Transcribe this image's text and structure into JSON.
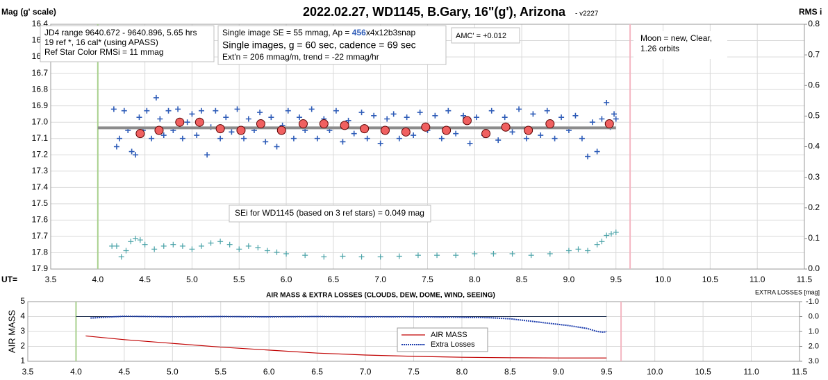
{
  "chart_data": [
    {
      "type": "scatter",
      "title": "2022.02.27, WD1145, B.Gary, 16\"(g'), Arizona",
      "subtitle": "- v2227",
      "y_label": "Mag (g' scale)",
      "y2_label": "RMS i",
      "x_label": "UT=",
      "xlim": [
        3.5,
        11.5
      ],
      "xticks": [
        3.5,
        {
          "value": 4,
          "label": "4.0"
        },
        4.5,
        {
          "value": 5,
          "label": "5.0"
        },
        5.5,
        {
          "value": 6,
          "label": "6.0"
        },
        6.5,
        {
          "value": 7,
          "label": "7.0"
        },
        7.5,
        {
          "value": 8,
          "label": "8.0"
        },
        8.5,
        {
          "value": 9,
          "label": "9.0"
        },
        9.5,
        {
          "value": 10,
          "label": "10.0"
        },
        10.5,
        {
          "value": 11,
          "label": "11.0"
        },
        11.5
      ],
      "ylim": [
        16.4,
        17.9
      ],
      "y_inverted": true,
      "yticks": [
        16.4,
        16.5,
        16.6,
        16.7,
        16.8,
        16.9,
        {
          "value": 17,
          "label": "17.0"
        },
        17.1,
        17.2,
        17.3,
        17.4,
        17.5,
        17.6,
        17.7,
        17.8,
        17.9
      ],
      "y2lim": [
        0,
        0.8
      ],
      "y2ticks": [
        {
          "value": 0,
          "label": "0.0"
        },
        0.1,
        0.2,
        0.3,
        0.4,
        0.5,
        0.6,
        0.7,
        0.8
      ],
      "grid": true,
      "vlines": [
        {
          "x": 4.0,
          "color": "#a9d18e"
        },
        {
          "x": 9.65,
          "color": "#f4b6c2"
        }
      ],
      "series": [
        {
          "color": "#2e5cb8",
          "marker": "plus",
          "x": [
            4.17,
            4.2,
            4.23,
            4.28,
            4.32,
            4.36,
            4.4,
            4.44,
            4.48,
            4.52,
            4.57,
            4.62,
            4.66,
            4.7,
            4.75,
            4.8,
            4.85,
            4.9,
            4.95,
            5.0,
            5.05,
            5.1,
            5.16,
            5.2,
            5.25,
            5.3,
            5.36,
            5.42,
            5.48,
            5.55,
            5.6,
            5.66,
            5.72,
            5.78,
            5.84,
            5.9,
            5.96,
            6.02,
            6.08,
            6.14,
            6.2,
            6.27,
            6.33,
            6.4,
            6.46,
            6.53,
            6.6,
            6.66,
            6.72,
            6.8,
            6.86,
            6.93,
            7.0,
            7.07,
            7.14,
            7.2,
            7.28,
            7.35,
            7.42,
            7.5,
            7.58,
            7.65,
            7.72,
            7.8,
            7.88,
            7.95,
            8.02,
            8.1,
            8.18,
            8.25,
            8.32,
            8.4,
            8.47,
            8.55,
            8.62,
            8.7,
            8.77,
            8.85,
            8.92,
            9.0,
            9.07,
            9.14,
            9.2,
            9.25,
            9.3,
            9.35,
            9.4,
            9.44,
            9.48,
            9.5
          ],
          "values": [
            16.92,
            17.15,
            17.1,
            16.93,
            17.05,
            17.18,
            17.2,
            16.97,
            17.05,
            16.93,
            17.1,
            16.85,
            16.98,
            17.08,
            16.93,
            17.05,
            16.92,
            17.1,
            17.0,
            16.95,
            17.08,
            16.93,
            17.2,
            17.03,
            16.93,
            17.1,
            16.97,
            17.06,
            16.92,
            17.1,
            16.98,
            17.05,
            16.94,
            17.12,
            16.97,
            17.15,
            17.02,
            16.93,
            17.1,
            16.97,
            17.05,
            16.92,
            17.1,
            16.98,
            17.05,
            16.93,
            17.12,
            16.99,
            17.07,
            16.94,
            17.1,
            16.96,
            17.13,
            16.98,
            16.95,
            17.1,
            16.97,
            17.08,
            16.94,
            17.05,
            16.96,
            17.1,
            16.93,
            17.07,
            16.96,
            17.13,
            16.97,
            17.08,
            16.93,
            17.11,
            16.97,
            17.06,
            16.92,
            17.1,
            16.95,
            17.08,
            16.93,
            17.1,
            16.97,
            17.05,
            16.96,
            17.1,
            17.21,
            17.0,
            17.18,
            16.98,
            16.88,
            17.03,
            16.95,
            16.98
          ]
        },
        {
          "color": "#8c8c8c",
          "marker": "line",
          "x": [
            4.0,
            9.5
          ],
          "values": [
            17.035,
            17.035
          ]
        },
        {
          "color": "#f06060",
          "marker": "circle",
          "x": [
            4.45,
            4.65,
            4.87,
            5.08,
            5.3,
            5.52,
            5.73,
            5.95,
            6.18,
            6.4,
            6.62,
            6.83,
            7.05,
            7.27,
            7.48,
            7.7,
            7.92,
            8.12,
            8.33,
            8.57,
            8.8,
            9.43
          ],
          "values": [
            17.07,
            17.05,
            17.0,
            17.0,
            17.04,
            17.05,
            17.01,
            17.05,
            17.01,
            17.01,
            17.02,
            17.04,
            17.05,
            17.06,
            17.03,
            17.05,
            16.99,
            17.07,
            17.03,
            17.05,
            17.01,
            17.01
          ]
        },
        {
          "color": "#4aa3a8",
          "marker": "plus",
          "axis": "y2",
          "x": [
            4.15,
            4.2,
            4.25,
            4.3,
            4.35,
            4.4,
            4.45,
            4.5,
            4.6,
            4.7,
            4.8,
            4.9,
            5.0,
            5.1,
            5.2,
            5.3,
            5.4,
            5.5,
            5.6,
            5.7,
            5.8,
            5.9,
            6.0,
            6.2,
            6.4,
            6.6,
            6.8,
            7.0,
            7.2,
            7.4,
            7.6,
            7.8,
            8.0,
            8.2,
            8.4,
            8.6,
            8.8,
            9.0,
            9.1,
            9.2,
            9.3,
            9.35,
            9.4,
            9.45,
            9.5
          ],
          "values": [
            0.075,
            0.075,
            0.04,
            0.06,
            0.09,
            0.1,
            0.095,
            0.08,
            0.065,
            0.075,
            0.08,
            0.075,
            0.065,
            0.075,
            0.085,
            0.09,
            0.08,
            0.065,
            0.075,
            0.07,
            0.06,
            0.055,
            0.05,
            0.045,
            0.04,
            0.042,
            0.04,
            0.04,
            0.042,
            0.045,
            0.045,
            0.045,
            0.05,
            0.05,
            0.05,
            0.045,
            0.05,
            0.06,
            0.065,
            0.06,
            0.08,
            0.09,
            0.11,
            0.115,
            0.12
          ]
        }
      ],
      "annotations": {
        "box1": [
          "JD4 range 9640.672 - 9640.896, 5.65 hrs",
          "19 ref *, 16 cal* (using APASS)",
          "Ref Star Color RMSi = 11 mmag"
        ],
        "box2": [
          [
            "Single image SE = 55 mmag, Ap = ",
            "456",
            "x4x12b3snap"
          ],
          "Single images, g = 60 sec, cadence = 69 sec",
          "Ext'n = 206 mmag/m, trend = -22 mmag/hr"
        ],
        "amc": "AMC' = +0.012",
        "moon": [
          "Moon = new, Clear,",
          "1.26 orbits"
        ],
        "sei": "SEi for WD1145 (based on 3 ref stars) = 0.049 mag"
      }
    },
    {
      "type": "line",
      "title": "AIR MASS & EXTRA LOSSES (CLOUDS, DEW, DOME, WIND, SEEING)",
      "y_label": "AIR MASS",
      "y2_label": "EXTRA LOSSES [mag]",
      "xlim": [
        3.5,
        11.5
      ],
      "xticks": [
        3.5,
        {
          "value": 4,
          "label": "4.0"
        },
        4.5,
        {
          "value": 5,
          "label": "5.0"
        },
        5.5,
        {
          "value": 6,
          "label": "6.0"
        },
        6.5,
        {
          "value": 7,
          "label": "7.0"
        },
        7.5,
        {
          "value": 8,
          "label": "8.0"
        },
        8.5,
        {
          "value": 9,
          "label": "9.0"
        },
        9.5,
        {
          "value": 10,
          "label": "10.0"
        },
        10.5,
        {
          "value": 11,
          "label": "11.0"
        },
        11.5
      ],
      "ylim": [
        1,
        5
      ],
      "yticks": [
        1,
        2,
        3,
        4,
        5
      ],
      "y2lim": [
        -1,
        3
      ],
      "y2_inverted": true,
      "y2ticks": [
        {
          "value": -1,
          "label": "-1.0"
        },
        {
          "value": 0,
          "label": "0.0"
        },
        {
          "value": 1,
          "label": "1.0"
        },
        {
          "value": 2,
          "label": "2.0"
        },
        {
          "value": 3,
          "label": "3.0"
        }
      ],
      "y2_reference": 0,
      "grid": true,
      "vlines": [
        {
          "x": 4.0,
          "color": "#a9d18e"
        },
        {
          "x": 9.65,
          "color": "#f4b6c2"
        }
      ],
      "series": [
        {
          "name": "AIR MASS",
          "color": "#c00000",
          "marker": "line",
          "x": [
            4.1,
            4.5,
            5.0,
            5.5,
            6.0,
            6.5,
            7.0,
            7.5,
            8.0,
            8.5,
            9.0,
            9.5
          ],
          "values": [
            2.7,
            2.45,
            2.2,
            1.95,
            1.75,
            1.55,
            1.42,
            1.33,
            1.27,
            1.24,
            1.22,
            1.22
          ]
        },
        {
          "name": "Extra Losses",
          "color": "#1f3fae",
          "marker": "dotted",
          "axis": "y2",
          "x": [
            4.15,
            4.3,
            4.5,
            5.0,
            5.5,
            6.0,
            6.5,
            7.0,
            7.5,
            8.0,
            8.3,
            8.5,
            8.7,
            8.9,
            9.1,
            9.3,
            9.4,
            9.47,
            9.5
          ],
          "values": [
            0.1,
            0.05,
            -0.02,
            0.02,
            0.0,
            0.02,
            0.0,
            0.02,
            0.02,
            0.05,
            0.08,
            0.15,
            0.3,
            0.45,
            0.6,
            0.8,
            1.0,
            1.05,
            1.0
          ]
        }
      ]
    }
  ]
}
